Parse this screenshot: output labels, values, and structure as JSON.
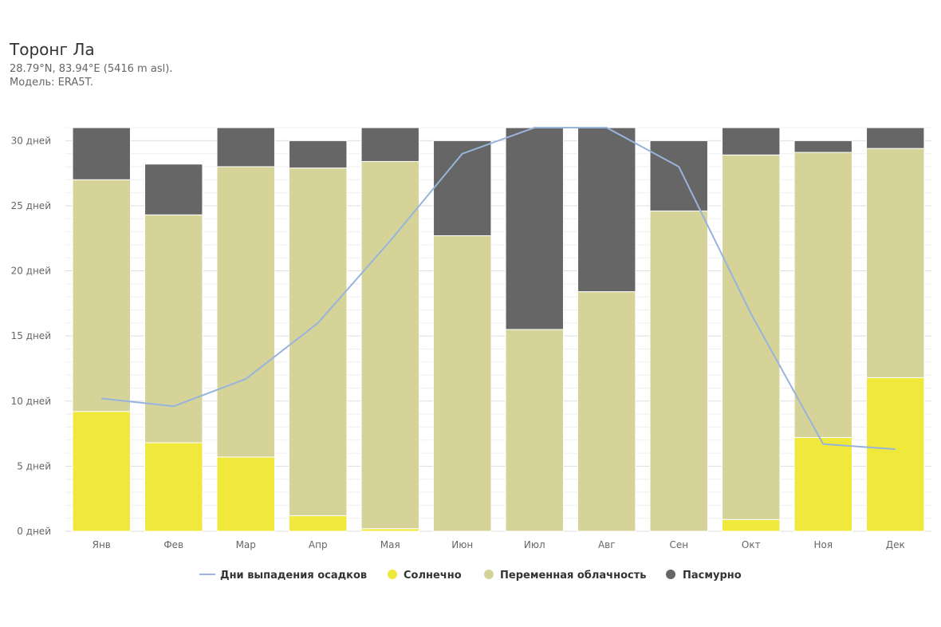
{
  "header": {
    "title": "Торонг Ла",
    "coords": "28.79°N, 83.94°E (5416 m asl).",
    "model": "Модель: ERA5T."
  },
  "colors": {
    "sunny": "#f0e83a",
    "partly_cloudy": "#d5d398",
    "overcast": "#666666",
    "precipitation": "#98b4dc"
  },
  "chart_data": {
    "type": "bar",
    "stacked": true,
    "categories": [
      "Янв",
      "Фев",
      "Мар",
      "Апр",
      "Мая",
      "Июн",
      "Июл",
      "Авг",
      "Сен",
      "Окт",
      "Ноя",
      "Дек"
    ],
    "series": [
      {
        "name": "Солнечно",
        "values": [
          9.2,
          6.8,
          5.7,
          1.2,
          0.2,
          0,
          0,
          0,
          0,
          0.9,
          7.2,
          11.8
        ]
      },
      {
        "name": "Переменная облачность",
        "values": [
          17.8,
          17.5,
          22.3,
          26.7,
          28.2,
          22.7,
          15.5,
          18.4,
          24.6,
          28.0,
          21.9,
          17.6
        ]
      },
      {
        "name": "Пасмурно",
        "values": [
          4.0,
          3.9,
          3.0,
          2.1,
          2.6,
          7.3,
          15.5,
          12.6,
          5.4,
          2.1,
          0.9,
          1.6
        ]
      }
    ],
    "line": {
      "name": "Дни выпадения осадков",
      "values": [
        10.2,
        9.6,
        11.7,
        16.0,
        22.3,
        29.0,
        31.0,
        31.0,
        28.0,
        16.7,
        6.7,
        6.3
      ]
    },
    "y_ticks": [
      "0 дней",
      "5 дней",
      "10 дней",
      "15 дней",
      "20 дней",
      "25 дней",
      "30 дней"
    ],
    "y_tick_values": [
      0,
      5,
      10,
      15,
      20,
      25,
      30
    ],
    "ylim": [
      0,
      31
    ],
    "grid": true,
    "legend_position": "bottom"
  }
}
